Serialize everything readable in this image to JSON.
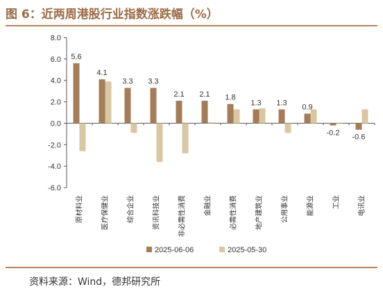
{
  "header": {
    "title": "图 6：近两周港股行业指数涨跌幅（%）"
  },
  "footer": {
    "source": "资料来源：Wind，德邦研究所"
  },
  "colors": {
    "accent": "#9b6b45",
    "rule": "#b5855a",
    "series_current": "#a47c58",
    "series_previous": "#d8c7a2"
  },
  "chart_data": {
    "type": "bar",
    "categories": [
      "原材料业",
      "医疗保健业",
      "综合企业",
      "资讯科技业",
      "非必需性消费",
      "金融业",
      "必需性消费",
      "地产建筑业",
      "公用事业",
      "能源业",
      "工业",
      "电讯业"
    ],
    "series": [
      {
        "name": "2025-06-06",
        "values": [
          5.6,
          4.1,
          3.3,
          3.3,
          2.1,
          2.1,
          1.8,
          1.3,
          1.3,
          0.9,
          -0.2,
          -0.6
        ]
      },
      {
        "name": "2025-05-30",
        "values": [
          -2.6,
          3.9,
          -0.9,
          -3.6,
          -2.8,
          0.1,
          1.3,
          1.4,
          -0.9,
          1.3,
          0.0,
          1.3
        ]
      }
    ],
    "data_labels": [
      "5.6",
      "4.1",
      "3.3",
      "3.3",
      "2.1",
      "2.1",
      "1.8",
      "1.3",
      "1.3",
      "0.9",
      "-0.2",
      "-0.6"
    ],
    "ylim": [
      -6.0,
      8.0
    ],
    "yticks": [
      8.0,
      6.0,
      4.0,
      2.0,
      0.0,
      -2.0,
      -4.0,
      -6.0
    ],
    "ytick_labels": [
      "8.0",
      "6.0",
      "4.0",
      "2.0",
      "0.0",
      "-2.0",
      "-4.0",
      "-6.0"
    ],
    "grid": false,
    "legend_position": "bottom",
    "xlabel": "",
    "ylabel": ""
  }
}
